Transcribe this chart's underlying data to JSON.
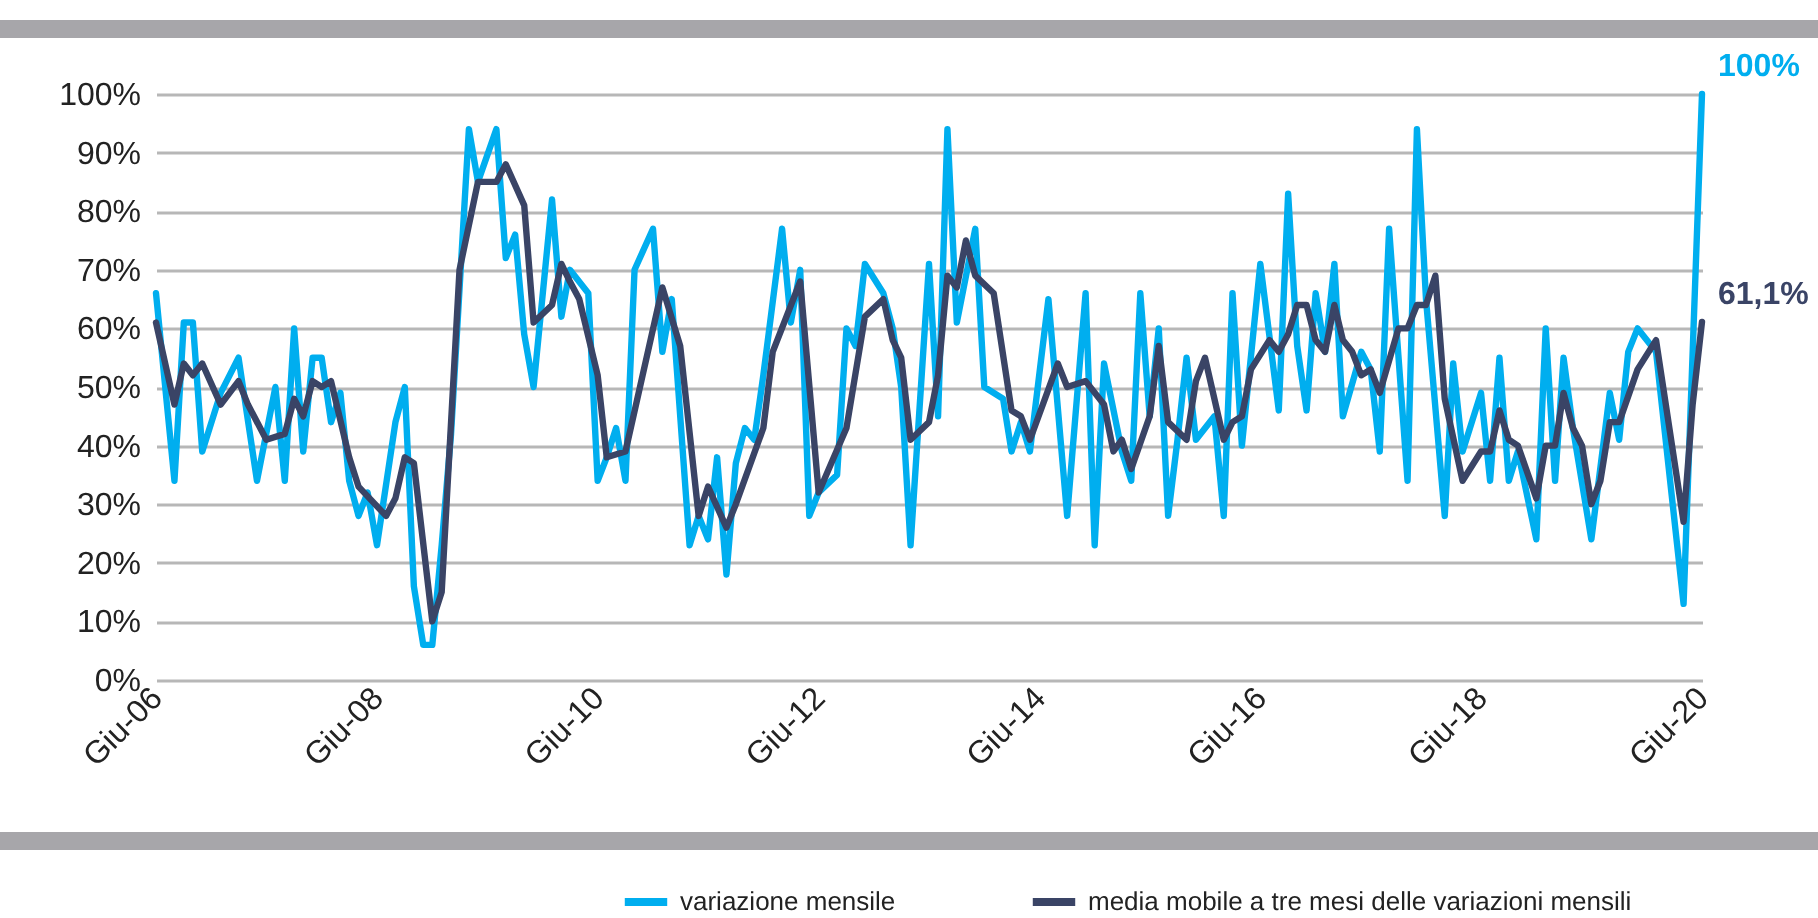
{
  "chart_data": {
    "type": "line",
    "xlim": [
      "2006-06",
      "2020-06"
    ],
    "xticks": [
      {
        "value": "2006-06",
        "label": "Giu-06"
      },
      {
        "value": "2008-06",
        "label": "Giu-08"
      },
      {
        "value": "2010-06",
        "label": "Giu-10"
      },
      {
        "value": "2012-06",
        "label": "Giu-12"
      },
      {
        "value": "2014-06",
        "label": "Giu-14"
      },
      {
        "value": "2016-06",
        "label": "Giu-16"
      },
      {
        "value": "2018-06",
        "label": "Giu-18"
      },
      {
        "value": "2020-06",
        "label": "Giu-20"
      }
    ],
    "ylim": [
      0,
      100
    ],
    "yticks": [
      {
        "value": 0,
        "label": "0%"
      },
      {
        "value": 10,
        "label": "10%"
      },
      {
        "value": 20,
        "label": "20%"
      },
      {
        "value": 30,
        "label": "30%"
      },
      {
        "value": 40,
        "label": "40%"
      },
      {
        "value": 50,
        "label": "50%"
      },
      {
        "value": 60,
        "label": "60%"
      },
      {
        "value": 70,
        "label": "70%"
      },
      {
        "value": 80,
        "label": "80%"
      },
      {
        "value": 90,
        "label": "90%"
      },
      {
        "value": 100,
        "label": "100%"
      }
    ],
    "grid": "y",
    "legend": "bottom right",
    "marker": "none",
    "line_style": "solid",
    "series": [
      {
        "name": "variazione mensile",
        "color": "#00aeef",
        "x": [
          "2006-06",
          "2006-08",
          "2006-09",
          "2006-10",
          "2006-11",
          "2007-01",
          "2007-03",
          "2007-05",
          "2007-07",
          "2007-08",
          "2007-09",
          "2007-10",
          "2007-11",
          "2007-12",
          "2008-01",
          "2008-02",
          "2008-03",
          "2008-04",
          "2008-05",
          "2008-06",
          "2008-08",
          "2008-09",
          "2008-10",
          "2008-11",
          "2008-12",
          "2009-01",
          "2009-02",
          "2009-04",
          "2009-05",
          "2009-07",
          "2009-08",
          "2009-09",
          "2009-10",
          "2009-11",
          "2010-01",
          "2010-02",
          "2010-03",
          "2010-05",
          "2010-06",
          "2010-07",
          "2010-08",
          "2010-09",
          "2010-10",
          "2010-12",
          "2011-01",
          "2011-02",
          "2011-04",
          "2011-05",
          "2011-06",
          "2011-07",
          "2011-08",
          "2011-09",
          "2011-10",
          "2011-11",
          "2011-12",
          "2012-02",
          "2012-03",
          "2012-04",
          "2012-05",
          "2012-06",
          "2012-08",
          "2012-09",
          "2012-10",
          "2012-11",
          "2013-01",
          "2013-02",
          "2013-03",
          "2013-04",
          "2013-06",
          "2013-07",
          "2013-08",
          "2013-09",
          "2013-11",
          "2013-12",
          "2014-02",
          "2014-03",
          "2014-04",
          "2014-05",
          "2014-07",
          "2014-09",
          "2014-11",
          "2014-12",
          "2015-01",
          "2015-03",
          "2015-04",
          "2015-05",
          "2015-06",
          "2015-07",
          "2015-08",
          "2015-09",
          "2015-10",
          "2015-11",
          "2016-01",
          "2016-02",
          "2016-03",
          "2016-04",
          "2016-06",
          "2016-08",
          "2016-09",
          "2016-10",
          "2016-11",
          "2016-12",
          "2017-01",
          "2017-02",
          "2017-03",
          "2017-05",
          "2017-06",
          "2017-07",
          "2017-08",
          "2017-10",
          "2017-11",
          "2017-12",
          "2018-02",
          "2018-03",
          "2018-04",
          "2018-06",
          "2018-07",
          "2018-08",
          "2018-09",
          "2018-10",
          "2018-12",
          "2019-01",
          "2019-02",
          "2019-03",
          "2019-04",
          "2019-06",
          "2019-08",
          "2019-09",
          "2019-10",
          "2019-11",
          "2020-01",
          "2020-04",
          "2020-06"
        ],
        "values": [
          66,
          34,
          61,
          61,
          39,
          49,
          55,
          34,
          50,
          34,
          60,
          39,
          55,
          55,
          44,
          49,
          34,
          28,
          32,
          23,
          44,
          50,
          16,
          6,
          6,
          23,
          42,
          94,
          85,
          94,
          72,
          76,
          59,
          50,
          82,
          62,
          70,
          66,
          34,
          38,
          43,
          34,
          70,
          77,
          56,
          65,
          23,
          28,
          24,
          38,
          18,
          37,
          43,
          41,
          52,
          77,
          61,
          70,
          28,
          32,
          35,
          60,
          57,
          71,
          66,
          60,
          50,
          23,
          71,
          45,
          94,
          61,
          77,
          50,
          48,
          39,
          44,
          39,
          65,
          28,
          66,
          23,
          54,
          39,
          34,
          66,
          45,
          60,
          28,
          41,
          55,
          41,
          45,
          28,
          66,
          40,
          71,
          46,
          83,
          57,
          46,
          66,
          56,
          71,
          45,
          56,
          53,
          39,
          77,
          34,
          94,
          65,
          28,
          54,
          39,
          49,
          34,
          55,
          34,
          39,
          24,
          60,
          34,
          55,
          43,
          24,
          49,
          41,
          56,
          60,
          56,
          13,
          100
        ]
      },
      {
        "name": "media mobile a tre mesi delle variazioni mensili",
        "color": "#3a4466",
        "x": [
          "2006-06",
          "2006-08",
          "2006-09",
          "2006-10",
          "2006-11",
          "2007-01",
          "2007-03",
          "2007-04",
          "2007-06",
          "2007-08",
          "2007-09",
          "2007-10",
          "2007-11",
          "2007-12",
          "2008-01",
          "2008-03",
          "2008-04",
          "2008-07",
          "2008-08",
          "2008-09",
          "2008-10",
          "2008-12",
          "2009-01",
          "2009-03",
          "2009-05",
          "2009-07",
          "2009-08",
          "2009-10",
          "2009-11",
          "2010-01",
          "2010-02",
          "2010-03",
          "2010-04",
          "2010-06",
          "2010-07",
          "2010-09",
          "2011-01",
          "2011-03",
          "2011-05",
          "2011-06",
          "2011-08",
          "2011-09",
          "2011-12",
          "2012-01",
          "2012-04",
          "2012-06",
          "2012-09",
          "2012-11",
          "2013-01",
          "2013-02",
          "2013-03",
          "2013-04",
          "2013-06",
          "2013-07",
          "2013-08",
          "2013-09",
          "2013-10",
          "2013-11",
          "2014-01",
          "2014-03",
          "2014-04",
          "2014-05",
          "2014-08",
          "2014-09",
          "2014-11",
          "2015-01",
          "2015-02",
          "2015-03",
          "2015-04",
          "2015-06",
          "2015-07",
          "2015-08",
          "2015-10",
          "2015-11",
          "2015-12",
          "2016-02",
          "2016-03",
          "2016-04",
          "2016-05",
          "2016-07",
          "2016-08",
          "2016-09",
          "2016-10",
          "2016-11",
          "2016-12",
          "2017-01",
          "2017-02",
          "2017-03",
          "2017-04",
          "2017-05",
          "2017-06",
          "2017-07",
          "2017-09",
          "2017-10",
          "2017-11",
          "2017-12",
          "2018-01",
          "2018-02",
          "2018-04",
          "2018-06",
          "2018-07",
          "2018-08",
          "2018-09",
          "2018-10",
          "2018-12",
          "2019-01",
          "2019-02",
          "2019-03",
          "2019-04",
          "2019-05",
          "2019-06",
          "2019-07",
          "2019-08",
          "2019-09",
          "2019-11",
          "2020-01",
          "2020-04",
          "2020-05",
          "2020-06"
        ],
        "values": [
          61,
          47,
          54,
          52,
          54,
          47,
          51,
          47,
          41,
          42,
          48,
          45,
          51,
          50,
          51,
          38,
          33,
          28,
          31,
          38,
          37,
          10,
          15,
          70,
          85,
          85,
          88,
          81,
          61,
          64,
          71,
          68,
          65,
          52,
          38,
          39,
          67,
          57,
          28,
          33,
          26,
          30,
          43,
          56,
          68,
          32,
          43,
          62,
          65,
          58,
          55,
          41,
          44,
          52,
          69,
          67,
          75,
          69,
          66,
          46,
          45,
          41,
          54,
          50,
          51,
          47,
          39,
          41,
          36,
          45,
          57,
          44,
          41,
          51,
          55,
          41,
          44,
          45,
          53,
          58,
          56,
          59,
          64,
          64,
          58,
          56,
          64,
          58,
          56,
          52,
          53,
          49,
          60,
          60,
          64,
          64,
          69,
          48,
          34,
          39,
          39,
          46,
          41,
          40,
          31,
          40,
          40,
          49,
          43,
          40,
          30,
          34,
          44,
          44,
          53,
          58,
          27,
          47,
          61.1
        ]
      }
    ],
    "annotations": [
      {
        "text": "100%",
        "x": "2020-06",
        "y": 100
      },
      {
        "text": "61,1%",
        "x": "2020-06",
        "y": 61.1
      }
    ]
  }
}
